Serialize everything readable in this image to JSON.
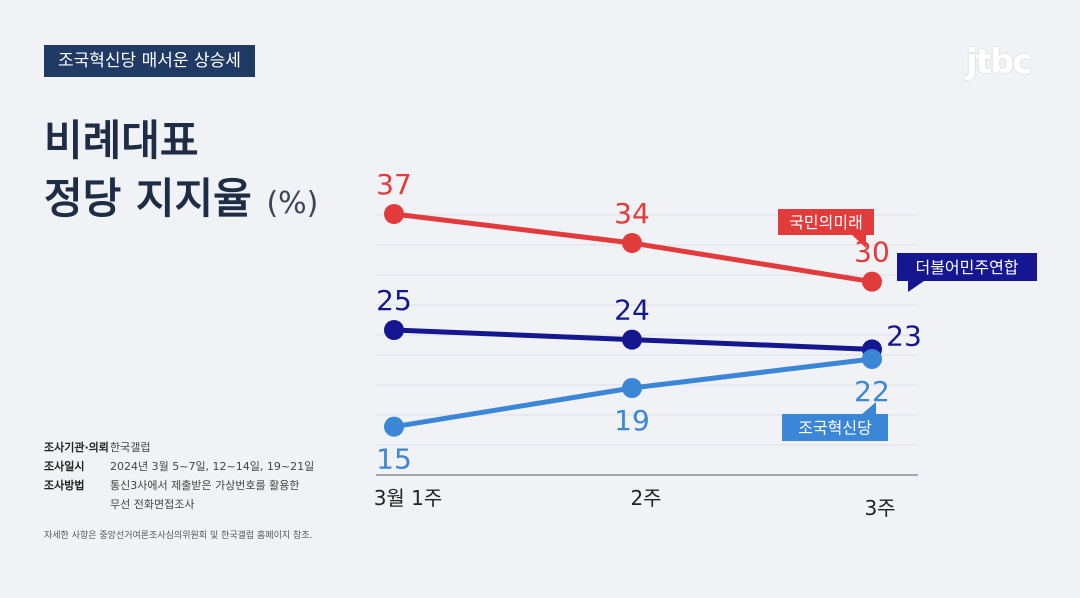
{
  "header": {
    "tag_label": "조국혁신당 매서운 상승세",
    "logo_text": "jtbc",
    "title_line1": "비례대표",
    "title_line2": "정당 지지율",
    "title_unit": "(%)"
  },
  "notes": {
    "rows": [
      {
        "key": "조사기관·의뢰",
        "value": "한국갤럽"
      },
      {
        "key": "조사일시",
        "value": "2024년 3월 5~7일, 12~14일, 19~21일"
      },
      {
        "key": "조사방법",
        "value": "통신3사에서 제출받은 가상번호를 활용한"
      }
    ],
    "method_line2": "무선 전화면접조사",
    "footnote": "자세한 사항은 중앙선거여론조사심의위원회 및 한국갤럽 홈페이지 참조."
  },
  "chart_data": {
    "type": "line",
    "categories": [
      "3월 1주",
      "2주",
      "3주"
    ],
    "ylim": [
      10,
      40
    ],
    "grid": true,
    "series": [
      {
        "name": "국민의미래",
        "values": [
          37,
          34,
          30
        ],
        "color": "#e23b3b"
      },
      {
        "name": "더불어민주연합",
        "values": [
          25,
          24,
          23
        ],
        "color": "#14178f"
      },
      {
        "name": "조국혁신당",
        "values": [
          15,
          19,
          22
        ],
        "color": "#3b86d6"
      }
    ]
  }
}
